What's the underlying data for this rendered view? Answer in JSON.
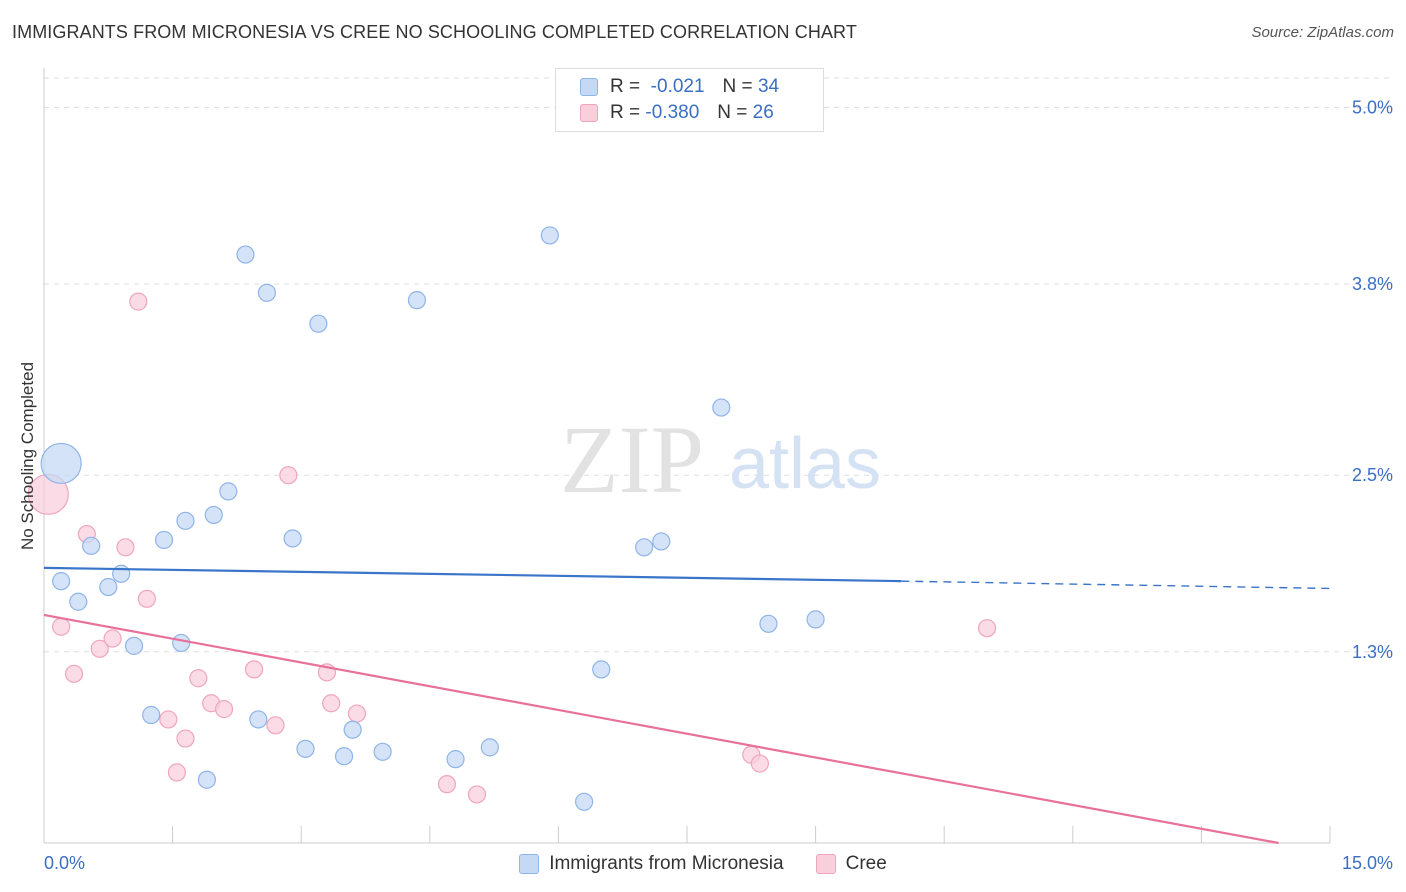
{
  "colors": {
    "series1_fill": "#c5d9f5",
    "series1_stroke": "#8fb4e8",
    "series1_line": "#3a75c9",
    "series2_fill": "#f9cfdc",
    "series2_stroke": "#f0a5bf",
    "series2_line": "#e8709a",
    "tick_label": "#3a6fc4",
    "grid": "#dddddd"
  },
  "header": {
    "title": "IMMIGRANTS FROM MICRONESIA VS CREE NO SCHOOLING COMPLETED CORRELATION CHART",
    "source": "Source: ZipAtlas.com"
  },
  "legend": {
    "r_label": "R =",
    "n_label": "N =",
    "rows": [
      {
        "r": "-0.021",
        "n": "34"
      },
      {
        "r": "-0.380",
        "n": "26"
      }
    ]
  },
  "watermark": {
    "zip": "ZIP",
    "atlas": "atlas"
  },
  "chart_data": {
    "type": "scatter",
    "title": "IMMIGRANTS FROM MICRONESIA VS CREE NO SCHOOLING COMPLETED CORRELATION CHART",
    "xlabel": "",
    "ylabel": "No Schooling Completed",
    "xlim": [
      0,
      15
    ],
    "ylim": [
      0,
      5.2
    ],
    "x_tick_labels": [
      {
        "value": 0,
        "label": "0.0%"
      },
      {
        "value": 15,
        "label": "15.0%"
      }
    ],
    "y_tick_labels": [
      {
        "value": 1.3,
        "label": "1.3%"
      },
      {
        "value": 2.5,
        "label": "2.5%"
      },
      {
        "value": 3.8,
        "label": "3.8%"
      },
      {
        "value": 5.0,
        "label": "5.0%"
      }
    ],
    "series": [
      {
        "name": "Immigrants from Micronesia",
        "R": -0.021,
        "N": 34,
        "trend": {
          "x0": 0,
          "y0": 1.87,
          "x1": 10.0,
          "y1": 1.78,
          "dash_to_x": 15,
          "dash_to_y": 1.73
        },
        "points": [
          {
            "x": 0.2,
            "y": 2.58,
            "big": true
          },
          {
            "x": 0.2,
            "y": 1.78
          },
          {
            "x": 0.4,
            "y": 1.64
          },
          {
            "x": 0.55,
            "y": 2.02
          },
          {
            "x": 0.75,
            "y": 1.74
          },
          {
            "x": 0.9,
            "y": 1.83
          },
          {
            "x": 1.05,
            "y": 1.34
          },
          {
            "x": 1.25,
            "y": 0.87
          },
          {
            "x": 1.4,
            "y": 2.06
          },
          {
            "x": 1.6,
            "y": 1.36
          },
          {
            "x": 1.65,
            "y": 2.19
          },
          {
            "x": 1.9,
            "y": 0.43
          },
          {
            "x": 1.98,
            "y": 2.23
          },
          {
            "x": 2.15,
            "y": 2.39
          },
          {
            "x": 2.35,
            "y": 4.0
          },
          {
            "x": 2.5,
            "y": 0.84
          },
          {
            "x": 2.6,
            "y": 3.74
          },
          {
            "x": 2.9,
            "y": 2.07
          },
          {
            "x": 3.05,
            "y": 0.64
          },
          {
            "x": 3.2,
            "y": 3.53
          },
          {
            "x": 3.5,
            "y": 0.59
          },
          {
            "x": 3.6,
            "y": 0.77
          },
          {
            "x": 3.95,
            "y": 0.62
          },
          {
            "x": 4.35,
            "y": 3.69
          },
          {
            "x": 4.8,
            "y": 0.57
          },
          {
            "x": 5.2,
            "y": 0.65
          },
          {
            "x": 5.9,
            "y": 4.13
          },
          {
            "x": 6.3,
            "y": 0.28
          },
          {
            "x": 6.5,
            "y": 1.18
          },
          {
            "x": 7.0,
            "y": 2.01
          },
          {
            "x": 7.2,
            "y": 2.05
          },
          {
            "x": 7.9,
            "y": 2.96
          },
          {
            "x": 8.45,
            "y": 1.49
          },
          {
            "x": 9.0,
            "y": 1.52
          }
        ]
      },
      {
        "name": "Cree",
        "R": -0.38,
        "N": 26,
        "trend": {
          "x0": 0,
          "y0": 1.55,
          "x1": 14.4,
          "y1": 0.0
        },
        "points": [
          {
            "x": 0.05,
            "y": 2.37,
            "big": true
          },
          {
            "x": 0.2,
            "y": 1.47
          },
          {
            "x": 0.35,
            "y": 1.15
          },
          {
            "x": 0.5,
            "y": 2.1
          },
          {
            "x": 0.65,
            "y": 1.32
          },
          {
            "x": 0.8,
            "y": 1.39
          },
          {
            "x": 0.95,
            "y": 2.01
          },
          {
            "x": 1.1,
            "y": 3.68
          },
          {
            "x": 1.2,
            "y": 1.66
          },
          {
            "x": 1.45,
            "y": 0.84
          },
          {
            "x": 1.55,
            "y": 0.48
          },
          {
            "x": 1.65,
            "y": 0.71
          },
          {
            "x": 1.8,
            "y": 1.12
          },
          {
            "x": 1.95,
            "y": 0.95
          },
          {
            "x": 2.1,
            "y": 0.91
          },
          {
            "x": 2.45,
            "y": 1.18
          },
          {
            "x": 2.7,
            "y": 0.8
          },
          {
            "x": 2.85,
            "y": 2.5
          },
          {
            "x": 3.3,
            "y": 1.16
          },
          {
            "x": 3.35,
            "y": 0.95
          },
          {
            "x": 3.65,
            "y": 0.88
          },
          {
            "x": 4.7,
            "y": 0.4
          },
          {
            "x": 5.05,
            "y": 0.33
          },
          {
            "x": 8.25,
            "y": 0.6
          },
          {
            "x": 8.35,
            "y": 0.54
          },
          {
            "x": 11.0,
            "y": 1.46
          }
        ]
      }
    ]
  }
}
